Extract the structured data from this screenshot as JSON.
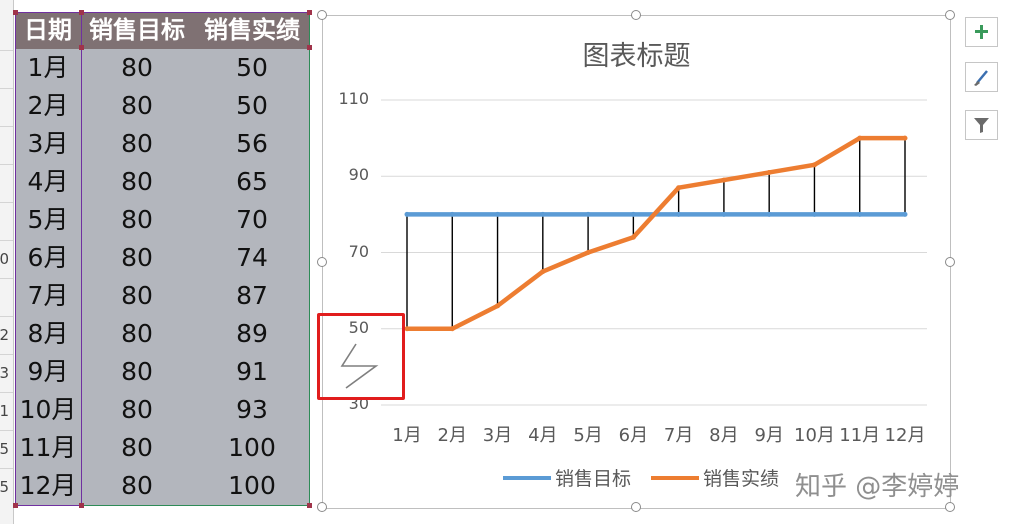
{
  "sheet": {
    "headers": [
      "日期",
      "销售目标",
      "销售实绩"
    ],
    "rows": [
      [
        "1月",
        "80",
        "50"
      ],
      [
        "2月",
        "80",
        "50"
      ],
      [
        "3月",
        "80",
        "56"
      ],
      [
        "4月",
        "80",
        "65"
      ],
      [
        "5月",
        "80",
        "70"
      ],
      [
        "6月",
        "80",
        "74"
      ],
      [
        "7月",
        "80",
        "87"
      ],
      [
        "8月",
        "80",
        "89"
      ],
      [
        "9月",
        "80",
        "91"
      ],
      [
        "10月",
        "80",
        "93"
      ],
      [
        "11月",
        "80",
        "100"
      ],
      [
        "12月",
        "80",
        "100"
      ]
    ],
    "row_numbers": [
      "0",
      "2",
      "3",
      "1",
      "5",
      "5"
    ]
  },
  "chart_data": {
    "type": "line",
    "title": "图表标题",
    "categories": [
      "1月",
      "2月",
      "3月",
      "4月",
      "5月",
      "6月",
      "7月",
      "8月",
      "9月",
      "10月",
      "11月",
      "12月"
    ],
    "series": [
      {
        "name": "销售目标",
        "values": [
          80,
          80,
          80,
          80,
          80,
          80,
          80,
          80,
          80,
          80,
          80,
          80
        ],
        "color": "#5b9bd5"
      },
      {
        "name": "销售实绩",
        "values": [
          50,
          50,
          56,
          65,
          70,
          74,
          87,
          89,
          91,
          93,
          100,
          100
        ],
        "color": "#ed7d31"
      }
    ],
    "ylim": [
      30,
      110
    ],
    "yticks": [
      110,
      90,
      70,
      50,
      30
    ],
    "grid": true,
    "drop_lines": true,
    "legend": "bottom"
  },
  "toolbar": {
    "buttons": [
      {
        "icon": "plus-icon"
      },
      {
        "icon": "brush-icon"
      },
      {
        "icon": "filter-icon"
      }
    ]
  },
  "watermark": "知乎 @李婷婷",
  "colors": {
    "header_bg": "#7f7173",
    "table_bg": "#b3b6bd",
    "highlight": "#e11d1d"
  }
}
